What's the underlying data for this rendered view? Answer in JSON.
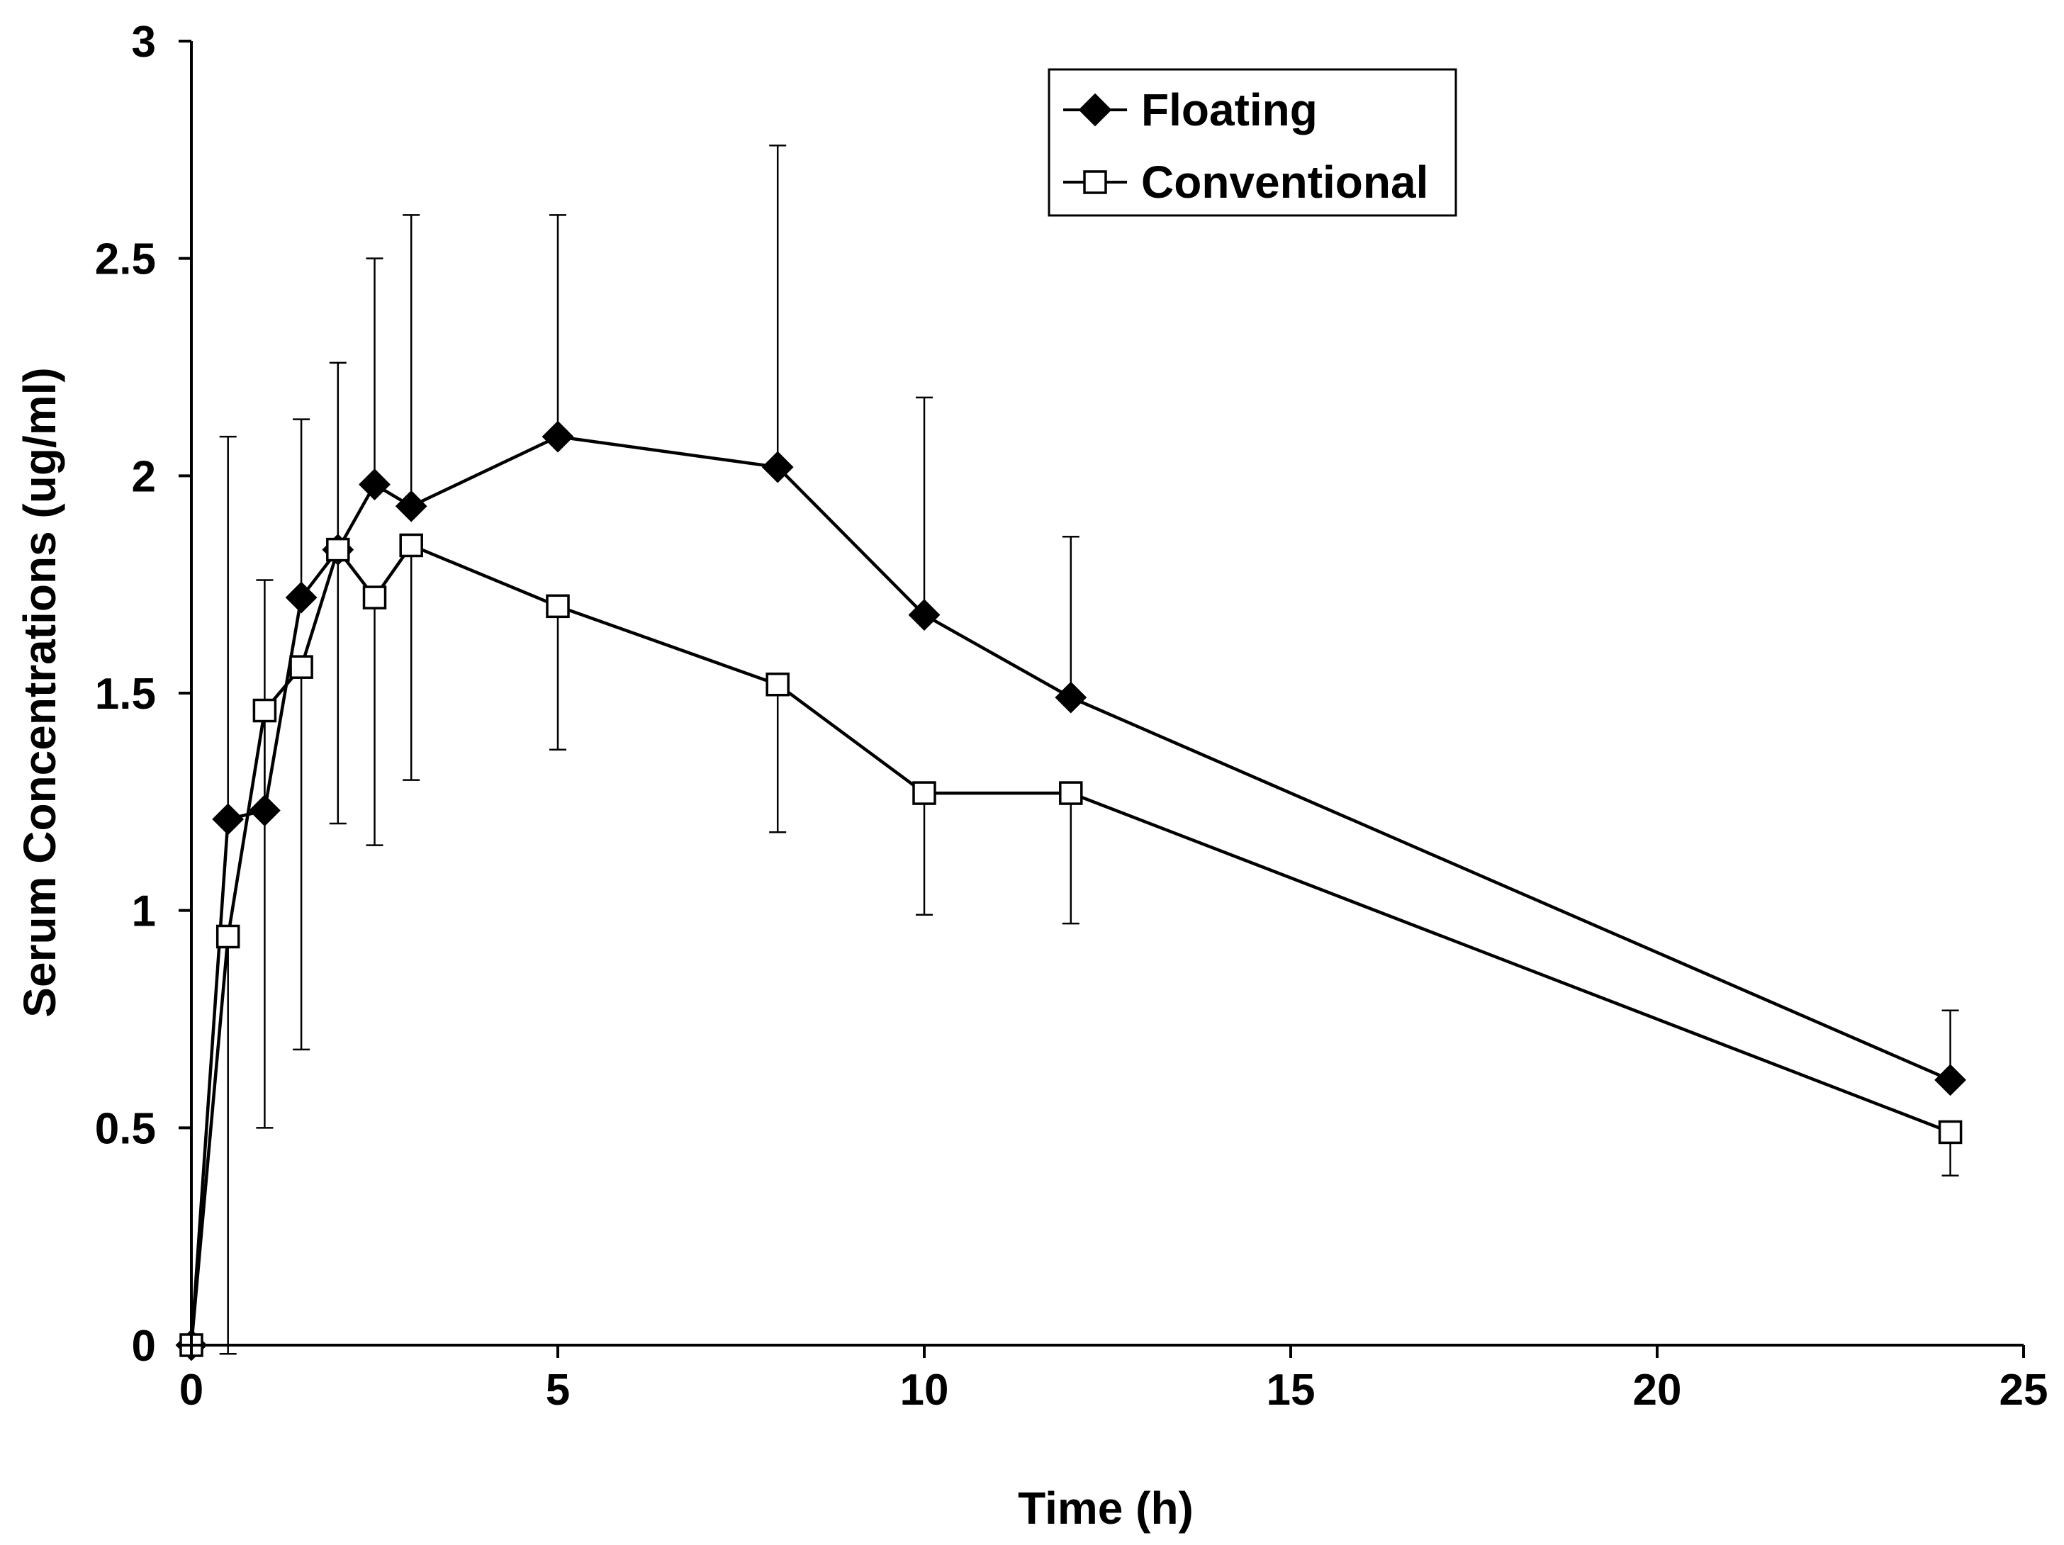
{
  "chart_data": {
    "type": "line",
    "title": "",
    "xlabel": "Time (h)",
    "ylabel": "Serum Concentrations (ug/ml)",
    "xlim": [
      0,
      25
    ],
    "ylim": [
      0,
      3
    ],
    "x_ticks": [
      0,
      5,
      10,
      15,
      20,
      25
    ],
    "y_ticks": [
      0,
      0.5,
      1,
      1.5,
      2,
      2.5,
      3
    ],
    "grid": false,
    "legend_position": "top-right",
    "series": [
      {
        "name": "Floating",
        "marker": "diamond-filled",
        "color": "#000000",
        "x": [
          0,
          0.5,
          1,
          1.5,
          2,
          2.5,
          3,
          5,
          8,
          10,
          12,
          24
        ],
        "y": [
          0,
          1.21,
          1.23,
          1.72,
          1.83,
          1.98,
          1.93,
          2.09,
          2.02,
          1.68,
          1.49,
          0.61
        ],
        "error_upper": [
          0,
          2.09,
          1.76,
          2.13,
          2.26,
          2.5,
          2.6,
          2.6,
          2.76,
          2.18,
          1.86,
          0.77
        ]
      },
      {
        "name": "Conventional",
        "marker": "square-open",
        "color": "#000000",
        "x": [
          0,
          0.5,
          1,
          1.5,
          2,
          2.5,
          3,
          5,
          8,
          10,
          12,
          24
        ],
        "y": [
          0,
          0.94,
          1.46,
          1.56,
          1.83,
          1.72,
          1.84,
          1.7,
          1.52,
          1.27,
          1.27,
          0.49
        ],
        "error_lower": [
          0,
          -0.02,
          0.5,
          0.68,
          1.2,
          1.15,
          1.3,
          1.37,
          1.18,
          0.99,
          0.97,
          0.39
        ]
      }
    ]
  }
}
